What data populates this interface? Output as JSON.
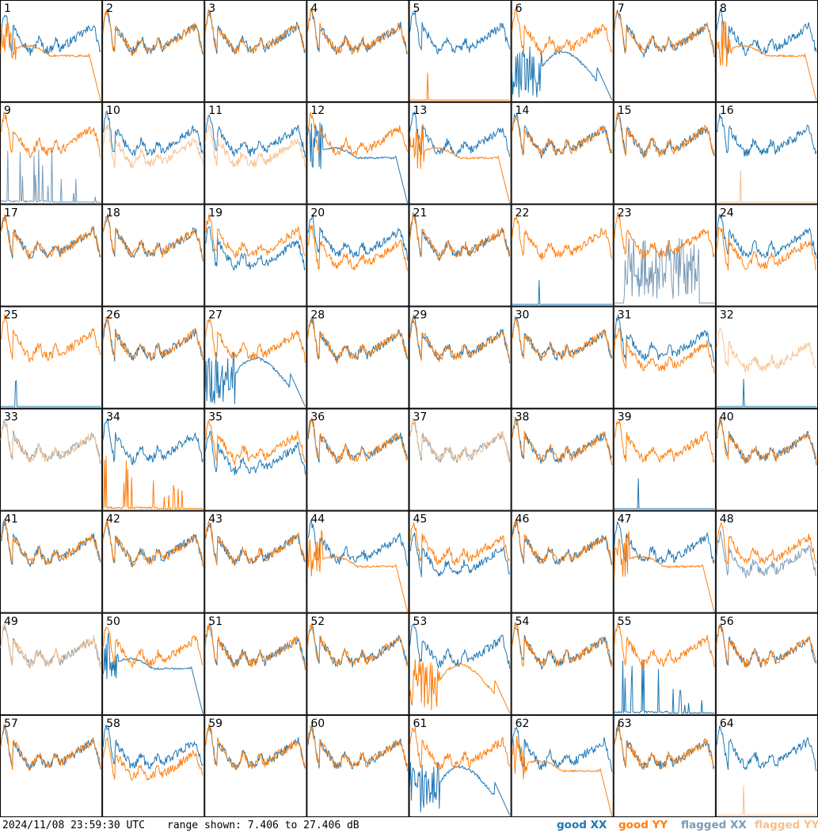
{
  "footer": {
    "timestamp": "2024/11/08 23:59:30 UTC",
    "range_text": "range shown: 7.406 to 27.406 dB"
  },
  "legend": [
    {
      "label": "good XX",
      "color": "#1f77b4"
    },
    {
      "label": "good YY",
      "color": "#ff7f0e"
    },
    {
      "label": "flagged XX",
      "color": "#7a9bb8"
    },
    {
      "label": "flagged YY",
      "color": "#f8c08e"
    }
  ],
  "chart_data": {
    "type": "line",
    "y_range_db": [
      7.406,
      27.406
    ],
    "grid": "8x8 small multiples, one panel per tile",
    "tiles": [
      {
        "n": 1,
        "xx": "good",
        "yy": "good",
        "xx_shape": "normal",
        "yy_shape": "dip_dropoff"
      },
      {
        "n": 2,
        "xx": "good",
        "yy": "good",
        "xx_shape": "normal",
        "yy_shape": "normal"
      },
      {
        "n": 3,
        "xx": "good",
        "yy": "good",
        "xx_shape": "normal",
        "yy_shape": "normal"
      },
      {
        "n": 4,
        "xx": "good",
        "yy": "good",
        "xx_shape": "normal",
        "yy_shape": "normal"
      },
      {
        "n": 5,
        "xx": "good",
        "yy": "good",
        "xx_shape": "normal",
        "yy_shape": "flat_spike"
      },
      {
        "n": 6,
        "xx": "good",
        "yy": "good",
        "xx_shape": "deep_dip",
        "yy_shape": "normal"
      },
      {
        "n": 7,
        "xx": "good",
        "yy": "good",
        "xx_shape": "normal",
        "yy_shape": "normal"
      },
      {
        "n": 8,
        "xx": "good",
        "yy": "good",
        "xx_shape": "normal",
        "yy_shape": "dip_dropoff"
      },
      {
        "n": 9,
        "xx": "flagged",
        "yy": "good",
        "xx_shape": "spiky_low",
        "yy_shape": "normal"
      },
      {
        "n": 10,
        "xx": "good",
        "yy": "flagged",
        "xx_shape": "normal",
        "yy_shape": "lower"
      },
      {
        "n": 11,
        "xx": "good",
        "yy": "flagged",
        "xx_shape": "normal",
        "yy_shape": "lower"
      },
      {
        "n": 12,
        "xx": "good",
        "yy": "good",
        "xx_shape": "dip_dropoff",
        "yy_shape": "normal"
      },
      {
        "n": 13,
        "xx": "good",
        "yy": "good",
        "xx_shape": "normal",
        "yy_shape": "dip_dropoff"
      },
      {
        "n": 14,
        "xx": "good",
        "yy": "good",
        "xx_shape": "normal",
        "yy_shape": "normal"
      },
      {
        "n": 15,
        "xx": "good",
        "yy": "good",
        "xx_shape": "normal",
        "yy_shape": "normal"
      },
      {
        "n": 16,
        "xx": "good",
        "yy": "flagged",
        "xx_shape": "normal",
        "yy_shape": "flat_spike"
      },
      {
        "n": 17,
        "xx": "good",
        "yy": "good",
        "xx_shape": "normal",
        "yy_shape": "normal"
      },
      {
        "n": 18,
        "xx": "good",
        "yy": "good",
        "xx_shape": "normal",
        "yy_shape": "normal"
      },
      {
        "n": 19,
        "xx": "good",
        "yy": "good",
        "xx_shape": "lower",
        "yy_shape": "normal"
      },
      {
        "n": 20,
        "xx": "good",
        "yy": "good",
        "xx_shape": "normal",
        "yy_shape": "lower"
      },
      {
        "n": 21,
        "xx": "good",
        "yy": "good",
        "xx_shape": "normal",
        "yy_shape": "normal"
      },
      {
        "n": 22,
        "xx": "good",
        "yy": "good",
        "xx_shape": "flat_spike",
        "yy_shape": "normal"
      },
      {
        "n": 23,
        "xx": "flagged",
        "yy": "good",
        "xx_shape": "spiky_mid",
        "yy_shape": "normal"
      },
      {
        "n": 24,
        "xx": "good",
        "yy": "good",
        "xx_shape": "normal",
        "yy_shape": "lower"
      },
      {
        "n": 25,
        "xx": "good",
        "yy": "good",
        "xx_shape": "flat_spike",
        "yy_shape": "normal"
      },
      {
        "n": 26,
        "xx": "good",
        "yy": "good",
        "xx_shape": "normal",
        "yy_shape": "normal"
      },
      {
        "n": 27,
        "xx": "good",
        "yy": "good",
        "xx_shape": "deep_dip",
        "yy_shape": "normal"
      },
      {
        "n": 28,
        "xx": "good",
        "yy": "good",
        "xx_shape": "normal",
        "yy_shape": "normal"
      },
      {
        "n": 29,
        "xx": "good",
        "yy": "good",
        "xx_shape": "normal",
        "yy_shape": "normal"
      },
      {
        "n": 30,
        "xx": "good",
        "yy": "good",
        "xx_shape": "normal",
        "yy_shape": "normal"
      },
      {
        "n": 31,
        "xx": "good",
        "yy": "good",
        "xx_shape": "normal",
        "yy_shape": "lower"
      },
      {
        "n": 32,
        "xx": "good",
        "yy": "flagged",
        "xx_shape": "flat_spike",
        "yy_shape": "lower"
      },
      {
        "n": 33,
        "xx": "flagged",
        "yy": "flagged",
        "xx_shape": "normal",
        "yy_shape": "normal"
      },
      {
        "n": 34,
        "xx": "good",
        "yy": "good",
        "xx_shape": "normal",
        "yy_shape": "spiky_low"
      },
      {
        "n": 35,
        "xx": "good",
        "yy": "good",
        "xx_shape": "lower",
        "yy_shape": "normal"
      },
      {
        "n": 36,
        "xx": "good",
        "yy": "good",
        "xx_shape": "normal",
        "yy_shape": "normal"
      },
      {
        "n": 37,
        "xx": "flagged",
        "yy": "flagged",
        "xx_shape": "normal",
        "yy_shape": "normal"
      },
      {
        "n": 38,
        "xx": "good",
        "yy": "good",
        "xx_shape": "normal",
        "yy_shape": "normal"
      },
      {
        "n": 39,
        "xx": "good",
        "yy": "good",
        "xx_shape": "flat_spike",
        "yy_shape": "normal"
      },
      {
        "n": 40,
        "xx": "good",
        "yy": "good",
        "xx_shape": "normal",
        "yy_shape": "normal"
      },
      {
        "n": 41,
        "xx": "good",
        "yy": "good",
        "xx_shape": "normal",
        "yy_shape": "normal"
      },
      {
        "n": 42,
        "xx": "good",
        "yy": "good",
        "xx_shape": "normal",
        "yy_shape": "normal"
      },
      {
        "n": 43,
        "xx": "good",
        "yy": "good",
        "xx_shape": "normal",
        "yy_shape": "normal"
      },
      {
        "n": 44,
        "xx": "good",
        "yy": "good",
        "xx_shape": "normal",
        "yy_shape": "dip_dropoff"
      },
      {
        "n": 45,
        "xx": "good",
        "yy": "good",
        "xx_shape": "lower",
        "yy_shape": "normal"
      },
      {
        "n": 46,
        "xx": "good",
        "yy": "good",
        "xx_shape": "normal",
        "yy_shape": "normal"
      },
      {
        "n": 47,
        "xx": "good",
        "yy": "good",
        "xx_shape": "normal",
        "yy_shape": "dip_dropoff"
      },
      {
        "n": 48,
        "xx": "flagged",
        "yy": "good",
        "xx_shape": "lower",
        "yy_shape": "normal"
      },
      {
        "n": 49,
        "xx": "flagged",
        "yy": "flagged",
        "xx_shape": "normal",
        "yy_shape": "normal"
      },
      {
        "n": 50,
        "xx": "good",
        "yy": "good",
        "xx_shape": "dip_dropoff",
        "yy_shape": "normal"
      },
      {
        "n": 51,
        "xx": "good",
        "yy": "good",
        "xx_shape": "normal",
        "yy_shape": "normal"
      },
      {
        "n": 52,
        "xx": "good",
        "yy": "good",
        "xx_shape": "normal",
        "yy_shape": "normal"
      },
      {
        "n": 53,
        "xx": "good",
        "yy": "good",
        "xx_shape": "normal",
        "yy_shape": "deep_dip"
      },
      {
        "n": 54,
        "xx": "good",
        "yy": "good",
        "xx_shape": "normal",
        "yy_shape": "normal"
      },
      {
        "n": 55,
        "xx": "good",
        "yy": "good",
        "xx_shape": "spiky_low",
        "yy_shape": "normal"
      },
      {
        "n": 56,
        "xx": "good",
        "yy": "good",
        "xx_shape": "normal",
        "yy_shape": "normal"
      },
      {
        "n": 57,
        "xx": "good",
        "yy": "good",
        "xx_shape": "normal",
        "yy_shape": "normal"
      },
      {
        "n": 58,
        "xx": "good",
        "yy": "good",
        "xx_shape": "normal",
        "yy_shape": "lower"
      },
      {
        "n": 59,
        "xx": "good",
        "yy": "good",
        "xx_shape": "normal",
        "yy_shape": "normal"
      },
      {
        "n": 60,
        "xx": "good",
        "yy": "good",
        "xx_shape": "normal",
        "yy_shape": "normal"
      },
      {
        "n": 61,
        "xx": "good",
        "yy": "good",
        "xx_shape": "deep_dip",
        "yy_shape": "normal"
      },
      {
        "n": 62,
        "xx": "good",
        "yy": "good",
        "xx_shape": "normal",
        "yy_shape": "dip_dropoff"
      },
      {
        "n": 63,
        "xx": "good",
        "yy": "good",
        "xx_shape": "normal",
        "yy_shape": "normal"
      },
      {
        "n": 64,
        "xx": "good",
        "yy": "flagged",
        "xx_shape": "normal",
        "yy_shape": "flat_spike"
      }
    ]
  }
}
